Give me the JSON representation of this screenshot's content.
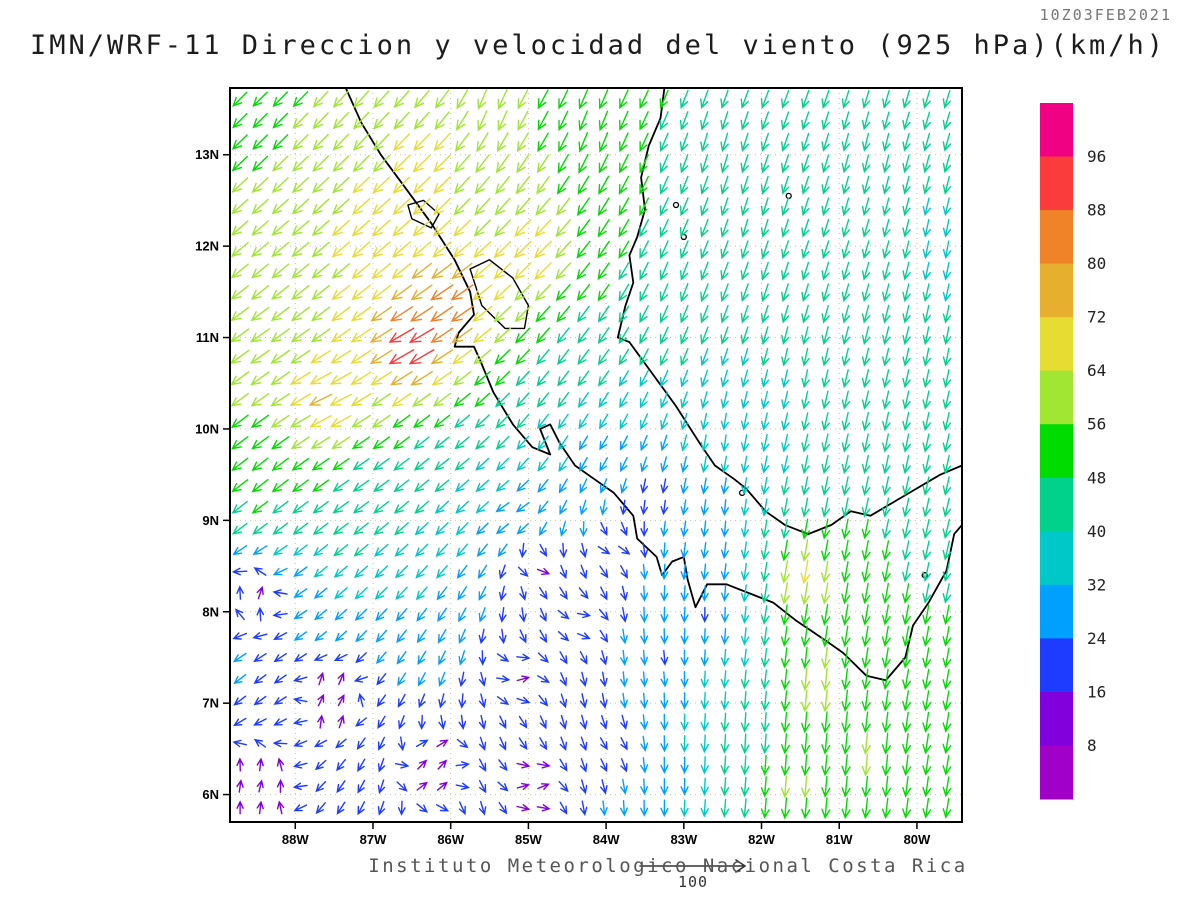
{
  "header": {
    "timestamp": "10Z03FEB2021",
    "title": "IMN/WRF-11 Direccion y velocidad del viento (925 hPa)(km/h)"
  },
  "footer": {
    "text": "Instituto Meteorologico Nacional Costa Rica",
    "reference_label": "100"
  },
  "chart_data": {
    "type": "quiver",
    "title": "IMN/WRF-11 Direccion y velocidad del viento (925 hPa)(km/h)",
    "timestamp": "10Z03FEB2021",
    "footer": "Instituto Meteorologico Nacional Costa Rica",
    "model": "IMN/WRF-11",
    "variable": "Direccion y velocidad del viento",
    "level": "925 hPa",
    "units": "km/h",
    "reference_vector": {
      "value": 100,
      "label": "100"
    },
    "grid_step": {
      "lon": 0.26,
      "lat": 0.235
    },
    "axes": {
      "lat_ticks": [
        "13N",
        "12N",
        "11N",
        "10N",
        "9N",
        "8N",
        "7N",
        "6N"
      ],
      "lat_tick_values": [
        13,
        12,
        11,
        10,
        9,
        8,
        7,
        6
      ],
      "lon_ticks": [
        "88W",
        "87W",
        "86W",
        "85W",
        "84W",
        "83W",
        "82W",
        "81W",
        "80W"
      ],
      "lon_tick_values_w": [
        88,
        87,
        86,
        85,
        84,
        83,
        82,
        81,
        80
      ],
      "lat_range": [
        5.7,
        13.73
      ],
      "lon_range_w": [
        79.42,
        88.84
      ],
      "grid": "dotted"
    },
    "colorbar": {
      "levels": [
        8,
        16,
        24,
        32,
        40,
        48,
        56,
        64,
        72,
        80,
        88,
        96
      ],
      "colors_low_to_high": [
        "#a000c8",
        "#8200dc",
        "#1e3cff",
        "#00a0ff",
        "#00c8c8",
        "#00d28c",
        "#00dc00",
        "#a0e632",
        "#e6dc32",
        "#e6af2d",
        "#f08228",
        "#fa3c3c",
        "#f00082"
      ]
    },
    "wind_control_points": {
      "format": [
        "lon_w",
        "lat",
        "direction_toward_deg",
        "speed_kmh"
      ],
      "points": [
        [
          88.6,
          13.6,
          225,
          50
        ],
        [
          87.0,
          13.4,
          222,
          62
        ],
        [
          85.5,
          13.5,
          200,
          58
        ],
        [
          84.2,
          13.3,
          200,
          55
        ],
        [
          82.6,
          13.1,
          195,
          45
        ],
        [
          80.6,
          13.0,
          193,
          40
        ],
        [
          79.6,
          12.0,
          190,
          38
        ],
        [
          87.0,
          12.2,
          228,
          70
        ],
        [
          86.0,
          11.4,
          237,
          90
        ],
        [
          86.5,
          10.9,
          242,
          104
        ],
        [
          87.6,
          10.3,
          245,
          78
        ],
        [
          88.5,
          10.9,
          235,
          65
        ],
        [
          88.4,
          9.4,
          232,
          52
        ],
        [
          87.2,
          9.4,
          235,
          45
        ],
        [
          86.1,
          9.7,
          232,
          40
        ],
        [
          85.2,
          9.1,
          240,
          28
        ],
        [
          88.5,
          8.2,
          25,
          12
        ],
        [
          87.5,
          7.1,
          30,
          10
        ],
        [
          86.2,
          6.3,
          40,
          11
        ],
        [
          85.1,
          7.3,
          65,
          12
        ],
        [
          84.3,
          7.9,
          85,
          14
        ],
        [
          83.9,
          8.7,
          95,
          16
        ],
        [
          84.9,
          8.5,
          85,
          12
        ],
        [
          83.3,
          7.4,
          172,
          22
        ],
        [
          83.1,
          6.2,
          180,
          30
        ],
        [
          82.2,
          6.6,
          183,
          48
        ],
        [
          81.6,
          6.1,
          184,
          60
        ],
        [
          81.3,
          7.2,
          185,
          66
        ],
        [
          81.5,
          8.4,
          190,
          74
        ],
        [
          80.6,
          6.4,
          185,
          58
        ],
        [
          80.0,
          7.4,
          190,
          52
        ],
        [
          79.6,
          8.8,
          193,
          46
        ],
        [
          80.3,
          9.9,
          191,
          42
        ],
        [
          81.5,
          10.6,
          191,
          40
        ],
        [
          83.0,
          11.6,
          200,
          46
        ],
        [
          84.3,
          10.7,
          217,
          42
        ],
        [
          84.0,
          9.7,
          212,
          26
        ],
        [
          83.4,
          9.2,
          185,
          17
        ],
        [
          82.5,
          9.9,
          186,
          32
        ],
        [
          84.9,
          11.9,
          226,
          72
        ],
        [
          86.3,
          12.9,
          226,
          70
        ],
        [
          88.1,
          11.9,
          230,
          60
        ],
        [
          79.6,
          10.9,
          190,
          40
        ],
        [
          82.1,
          12.3,
          196,
          42
        ],
        [
          80.9,
          8.3,
          190,
          55
        ],
        [
          84.9,
          6.1,
          55,
          10
        ],
        [
          88.5,
          6.1,
          15,
          10
        ],
        [
          83.9,
          6.5,
          140,
          16
        ],
        [
          82.6,
          8.0,
          178,
          20
        ],
        [
          82.5,
          9.0,
          183,
          26
        ]
      ]
    },
    "geography": {
      "coastlines": [
        [
          [
            87.35,
            13.73
          ],
          [
            87.15,
            13.35
          ],
          [
            86.9,
            13.0
          ],
          [
            86.55,
            12.6
          ],
          [
            86.25,
            12.25
          ],
          [
            85.95,
            11.85
          ],
          [
            85.75,
            11.5
          ],
          [
            85.7,
            11.25
          ],
          [
            85.9,
            11.05
          ],
          [
            85.95,
            10.9
          ],
          [
            85.7,
            10.9
          ],
          [
            85.62,
            10.75
          ],
          [
            85.45,
            10.4
          ],
          [
            85.2,
            10.05
          ],
          [
            84.95,
            9.8
          ],
          [
            84.72,
            9.72
          ],
          [
            84.85,
            10.0
          ],
          [
            84.72,
            10.05
          ],
          [
            84.6,
            9.85
          ],
          [
            84.4,
            9.6
          ],
          [
            84.15,
            9.45
          ],
          [
            83.9,
            9.3
          ],
          [
            83.65,
            9.05
          ],
          [
            83.6,
            8.8
          ],
          [
            83.35,
            8.6
          ],
          [
            83.28,
            8.4
          ],
          [
            83.15,
            8.55
          ],
          [
            83.0,
            8.6
          ],
          [
            82.95,
            8.35
          ],
          [
            82.85,
            8.05
          ],
          [
            82.7,
            8.3
          ],
          [
            82.45,
            8.3
          ],
          [
            82.15,
            8.2
          ],
          [
            81.85,
            8.1
          ],
          [
            81.55,
            7.9
          ],
          [
            81.2,
            7.7
          ],
          [
            80.95,
            7.55
          ],
          [
            80.65,
            7.3
          ],
          [
            80.4,
            7.25
          ],
          [
            80.15,
            7.5
          ],
          [
            80.05,
            7.85
          ],
          [
            79.85,
            8.1
          ],
          [
            79.62,
            8.45
          ],
          [
            79.52,
            8.85
          ],
          [
            79.42,
            8.95
          ]
        ],
        [
          [
            83.25,
            13.73
          ],
          [
            83.3,
            13.4
          ],
          [
            83.45,
            13.1
          ],
          [
            83.55,
            12.75
          ],
          [
            83.5,
            12.4
          ],
          [
            83.6,
            12.1
          ],
          [
            83.7,
            11.9
          ],
          [
            83.65,
            11.6
          ],
          [
            83.75,
            11.35
          ],
          [
            83.85,
            11.0
          ],
          [
            83.7,
            10.95
          ],
          [
            83.4,
            10.6
          ],
          [
            83.1,
            10.25
          ],
          [
            82.8,
            9.85
          ],
          [
            82.6,
            9.6
          ],
          [
            82.35,
            9.45
          ],
          [
            82.2,
            9.35
          ],
          [
            81.95,
            9.1
          ],
          [
            81.7,
            8.95
          ],
          [
            81.4,
            8.85
          ],
          [
            81.1,
            8.95
          ],
          [
            80.85,
            9.1
          ],
          [
            80.6,
            9.05
          ],
          [
            80.3,
            9.2
          ],
          [
            80.0,
            9.35
          ],
          [
            79.7,
            9.5
          ],
          [
            79.42,
            9.6
          ]
        ]
      ],
      "lakes": [
        [
          [
            85.75,
            11.75
          ],
          [
            85.5,
            11.85
          ],
          [
            85.2,
            11.65
          ],
          [
            85.0,
            11.35
          ],
          [
            85.05,
            11.1
          ],
          [
            85.3,
            11.1
          ],
          [
            85.6,
            11.35
          ],
          [
            85.75,
            11.75
          ]
        ],
        [
          [
            86.55,
            12.45
          ],
          [
            86.35,
            12.5
          ],
          [
            86.15,
            12.35
          ],
          [
            86.25,
            12.2
          ],
          [
            86.5,
            12.3
          ],
          [
            86.55,
            12.45
          ]
        ]
      ],
      "islands": [
        [
          83.1,
          12.45
        ],
        [
          83.0,
          12.1
        ],
        [
          81.65,
          12.55
        ],
        [
          82.25,
          9.3
        ],
        [
          79.9,
          8.4
        ]
      ]
    }
  }
}
